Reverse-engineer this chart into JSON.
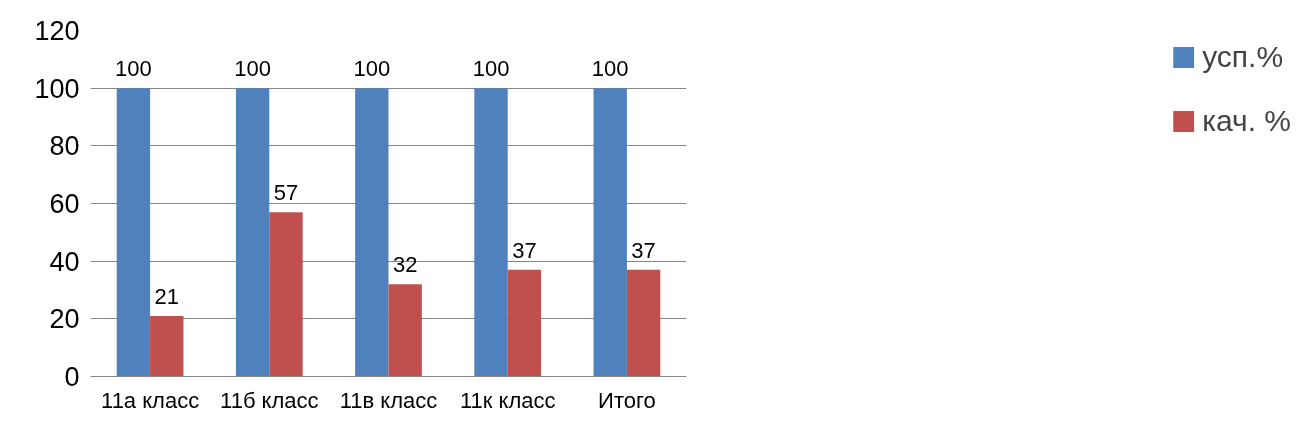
{
  "chart_data": {
    "type": "bar",
    "categories": [
      "11а класс",
      "11б класс",
      "11в класс",
      "11к класс",
      "Итого"
    ],
    "series": [
      {
        "name": "усп.%",
        "color": "#4f81bd",
        "values": [
          100,
          100,
          100,
          100,
          100
        ]
      },
      {
        "name": "кач. %",
        "color": "#c0504d",
        "values": [
          21,
          57,
          32,
          37,
          37
        ]
      }
    ],
    "ylim": [
      0,
      120
    ],
    "yticks": [
      0,
      20,
      40,
      60,
      80,
      100,
      120
    ],
    "grid": "y",
    "legend": "right",
    "data_labels": true
  }
}
